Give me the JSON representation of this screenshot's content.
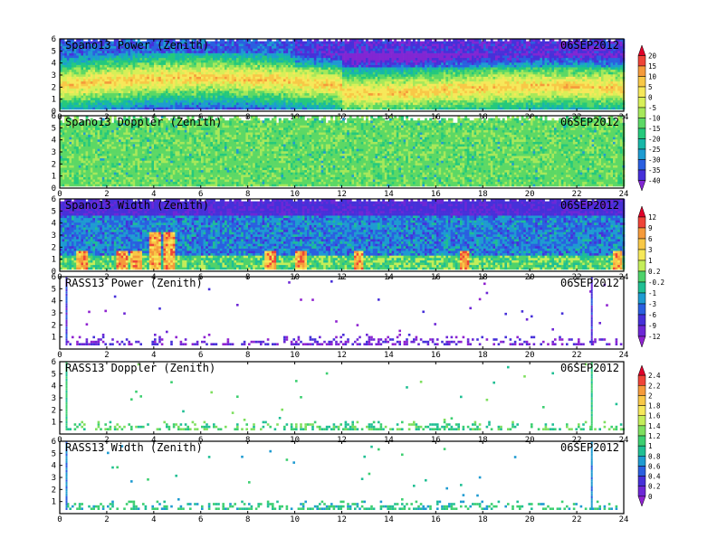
{
  "chart_data": [
    {
      "type": "heatmap",
      "title": "Spano13 Power (Zenith)",
      "date": "06SEP2012",
      "xlim": [
        0,
        24
      ],
      "ylim": [
        0,
        6
      ],
      "x_ticks": [
        "0",
        "2",
        "4",
        "6",
        "8",
        "10",
        "12",
        "14",
        "16",
        "18",
        "20",
        "22",
        "24"
      ],
      "y_ticks": [
        "0",
        "1",
        "2",
        "3",
        "4",
        "5",
        "6"
      ],
      "colorbar": "power",
      "profile": {
        "kind": "power_band",
        "band_center": [
          2.0,
          2.7,
          1.7
        ],
        "band_width": 1.6
      }
    },
    {
      "type": "heatmap",
      "title": "Spano13 Doppler (Zenith)",
      "date": "06SEP2012",
      "xlim": [
        0,
        24
      ],
      "ylim": [
        0,
        6
      ],
      "x_ticks": [
        "0",
        "2",
        "4",
        "6",
        "8",
        "10",
        "12",
        "14",
        "16",
        "18",
        "20",
        "22",
        "24"
      ],
      "y_ticks": [
        "0",
        "1",
        "2",
        "3",
        "4",
        "5",
        "6"
      ],
      "colorbar": "power",
      "profile": {
        "kind": "doppler_uniform"
      }
    },
    {
      "type": "heatmap",
      "title": "Spano13 Width (Zenith)",
      "date": "06SEP2012",
      "xlim": [
        0,
        24
      ],
      "ylim": [
        0,
        6
      ],
      "x_ticks": [
        "0",
        "2",
        "4",
        "6",
        "8",
        "10",
        "12",
        "14",
        "16",
        "18",
        "20",
        "22",
        "24"
      ],
      "y_ticks": [
        "0",
        "1",
        "2",
        "3",
        "4",
        "5",
        "6"
      ],
      "colorbar": "width",
      "profile": {
        "kind": "width_spikes",
        "spike_times": [
          0.9,
          2.6,
          3.2,
          4.0,
          4.6,
          8.9,
          10.2,
          12.7,
          17.2,
          23.7
        ]
      }
    },
    {
      "type": "scatter",
      "title": "RASS13 Power (Zenith)",
      "date": "06SEP2012",
      "xlim": [
        0,
        24
      ],
      "ylim": [
        0,
        6
      ],
      "x_ticks": [
        "0",
        "2",
        "4",
        "6",
        "8",
        "10",
        "12",
        "14",
        "16",
        "18",
        "20",
        "22",
        "24"
      ],
      "y_ticks": [
        "1",
        "2",
        "3",
        "4",
        "5",
        "6"
      ],
      "colorbar": "width",
      "profile": {
        "kind": "rass_power",
        "spike_times": [
          0.25,
          22.6
        ]
      }
    },
    {
      "type": "scatter",
      "title": "RASS13 Doppler (Zenith)",
      "date": "06SEP2012",
      "xlim": [
        0,
        24
      ],
      "ylim": [
        0,
        6
      ],
      "x_ticks": [
        "0",
        "2",
        "4",
        "6",
        "8",
        "10",
        "12",
        "14",
        "16",
        "18",
        "20",
        "22",
        "24"
      ],
      "y_ticks": [
        "1",
        "2",
        "3",
        "4",
        "5",
        "6"
      ],
      "colorbar": "rass",
      "profile": {
        "kind": "rass_doppler",
        "spike_times": [
          0.25,
          22.6
        ]
      }
    },
    {
      "type": "scatter",
      "title": "RASS13 Width (Zenith)",
      "date": "06SEP2012",
      "xlim": [
        0,
        24
      ],
      "ylim": [
        0,
        6
      ],
      "x_ticks": [
        "0",
        "2",
        "4",
        "6",
        "8",
        "10",
        "12",
        "14",
        "16",
        "18",
        "20",
        "22",
        "24"
      ],
      "y_ticks": [
        "1",
        "2",
        "3",
        "4",
        "5",
        "6"
      ],
      "colorbar": "rass",
      "profile": {
        "kind": "rass_width",
        "spike_times": [
          0.25,
          22.6
        ]
      }
    }
  ],
  "colorbars": {
    "power": {
      "labels": [
        "20",
        "15",
        "10",
        "5",
        "0",
        "-5",
        "-10",
        "-15",
        "-20",
        "-25",
        "-30",
        "-35",
        "-40"
      ],
      "colors": [
        "#e0002a",
        "#ef4438",
        "#f59a3b",
        "#f8c847",
        "#f6e85a",
        "#d8ef58",
        "#a6e85a",
        "#5cd865",
        "#25c97c",
        "#17b7a8",
        "#1e9bd1",
        "#2a5fe0",
        "#4630d9",
        "#8126d3"
      ]
    },
    "width": {
      "labels": [
        "12",
        "9",
        "6",
        "3",
        "1",
        "0.2",
        "-0.2",
        "-1",
        "-3",
        "-6",
        "-9",
        "-12"
      ],
      "colors": [
        "#e0002a",
        "#ef4438",
        "#f59a3b",
        "#f8c847",
        "#f6e85a",
        "#c4ed59",
        "#4ed26b",
        "#1fbf93",
        "#1e9bd1",
        "#2a5fe0",
        "#4630d9",
        "#6d27d6",
        "#8f22d0"
      ]
    },
    "rass": {
      "labels": [
        "2.4",
        "2.2",
        "2",
        "1.8",
        "1.6",
        "1.4",
        "1.2",
        "1",
        "0.8",
        "0.6",
        "0.4",
        "0.2",
        "0"
      ],
      "colors": [
        "#e0002a",
        "#ef4438",
        "#f59a3b",
        "#f8c847",
        "#f6e85a",
        "#c4ed59",
        "#7edf5e",
        "#3ccf70",
        "#1fbf93",
        "#1e9bd1",
        "#2a5fe0",
        "#4630d9",
        "#6d27d6",
        "#8f22d0"
      ]
    }
  }
}
